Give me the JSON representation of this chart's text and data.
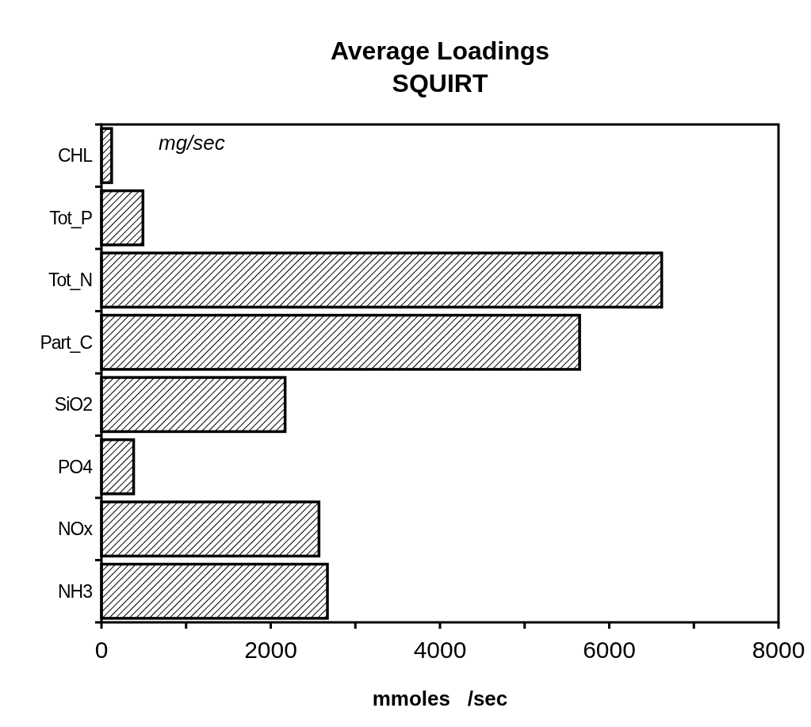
{
  "chart_data": {
    "type": "bar",
    "orientation": "horizontal",
    "title": "Average  Loadings",
    "subtitle": "SQUIRT",
    "xlabel": "mmoles   /sec",
    "annotations": [
      "mg/sec"
    ],
    "categories": [
      "CHL",
      "Tot_P",
      "Tot_N",
      "Part_C",
      "SiO2",
      "PO4",
      "NOx",
      "NH3"
    ],
    "values": [
      120,
      490,
      6620,
      5650,
      2170,
      380,
      2570,
      2670
    ],
    "color": "#000000",
    "xlim": [
      0,
      8000
    ],
    "xticks": [
      0,
      {
        "value": 1000,
        "label": null
      },
      2000,
      {
        "value": 3000,
        "label": null
      },
      4000,
      {
        "value": 5000,
        "label": null
      },
      6000,
      {
        "value": 7000,
        "label": null
      },
      8000
    ],
    "grid": false
  }
}
